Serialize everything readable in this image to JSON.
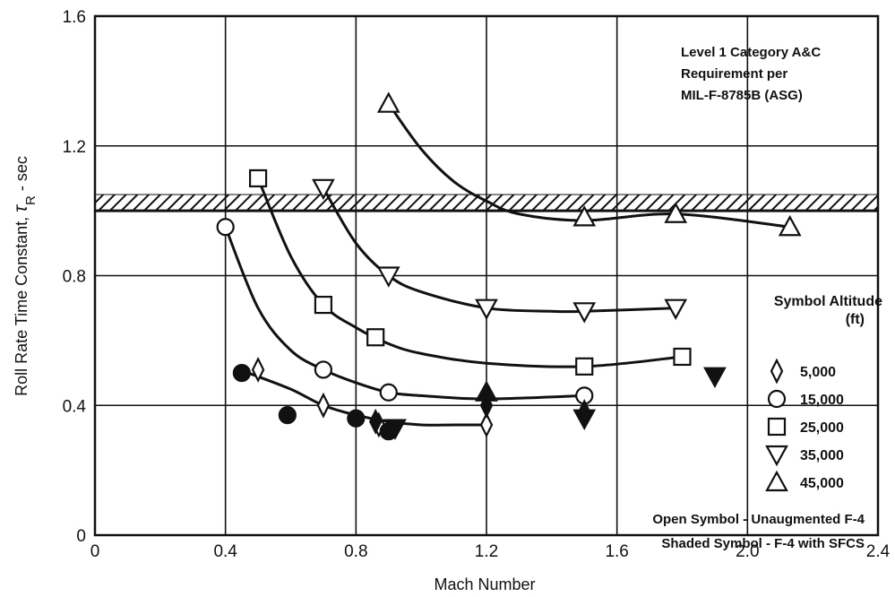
{
  "chart_data": {
    "type": "scatter",
    "xlabel": "Mach Number",
    "ylabel_main": "Roll Rate Time Constant, ",
    "ylabel_symbol": "τ",
    "ylabel_sub": "R",
    "ylabel_unit": " - sec",
    "xlim": [
      0,
      2.4
    ],
    "ylim": [
      0,
      1.6
    ],
    "x_ticks": [
      "0",
      "0.4",
      "0.8",
      "1.2",
      "1.6",
      "2.0",
      "2.4"
    ],
    "y_ticks": [
      "0",
      "0.4",
      "0.8",
      "1.2",
      "1.6"
    ],
    "grid": true,
    "requirement_band": {
      "y_low": 1.0,
      "y_high": 1.05
    },
    "annotation_lines": [
      "Level 1 Category A&C",
      "Requirement per",
      "MIL-F-8785B (ASG)"
    ],
    "legend": {
      "title_line1": "Symbol Altitude",
      "title_line2": "(ft)",
      "entries": [
        {
          "symbol": "diamond",
          "label": "5,000"
        },
        {
          "symbol": "circle",
          "label": "15,000"
        },
        {
          "symbol": "square",
          "label": "25,000"
        },
        {
          "symbol": "triangle-down",
          "label": "35,000"
        },
        {
          "symbol": "triangle-up",
          "label": "45,000"
        }
      ],
      "notes": [
        "Open Symbol - Unaugmented F-4",
        "Shaded Symbol - F-4 with SFCS"
      ]
    },
    "series": [
      {
        "altitude": "5,000",
        "symbol": "diamond",
        "style": "open",
        "x": [
          0.5,
          0.7,
          0.87,
          1.2
        ],
        "y": [
          0.51,
          0.4,
          0.34,
          0.34
        ]
      },
      {
        "altitude": "15,000",
        "symbol": "circle",
        "style": "open",
        "x": [
          0.4,
          0.7,
          0.9,
          1.5
        ],
        "y": [
          0.95,
          0.51,
          0.44,
          0.43
        ]
      },
      {
        "altitude": "25,000",
        "symbol": "square",
        "style": "open",
        "x": [
          0.5,
          0.7,
          0.86,
          1.5,
          1.8
        ],
        "y": [
          1.1,
          0.71,
          0.61,
          0.52,
          0.55
        ]
      },
      {
        "altitude": "35,000",
        "symbol": "triangle-down",
        "style": "open",
        "x": [
          0.7,
          0.9,
          1.2,
          1.5,
          1.78
        ],
        "y": [
          1.07,
          0.8,
          0.7,
          0.69,
          0.7
        ]
      },
      {
        "altitude": "45,000",
        "symbol": "triangle-up",
        "style": "open",
        "x": [
          0.9,
          1.5,
          1.78,
          2.13
        ],
        "y": [
          1.33,
          0.98,
          0.99,
          0.95
        ]
      },
      {
        "altitude": "5,000",
        "symbol": "diamond",
        "style": "shaded",
        "x": [
          0.86,
          1.2,
          1.5
        ],
        "y": [
          0.35,
          0.4,
          0.38
        ]
      },
      {
        "altitude": "15,000",
        "symbol": "circle",
        "style": "shaded",
        "x": [
          0.45,
          0.59,
          0.8,
          0.9
        ],
        "y": [
          0.5,
          0.37,
          0.36,
          0.32
        ]
      },
      {
        "altitude": "35,000",
        "symbol": "triangle-down",
        "style": "shaded",
        "x": [
          0.92,
          1.5,
          1.9
        ],
        "y": [
          0.33,
          0.36,
          0.49
        ]
      },
      {
        "altitude": "45,000",
        "symbol": "triangle-up",
        "style": "shaded",
        "x": [
          1.2
        ],
        "y": [
          0.44
        ]
      }
    ],
    "curves": [
      {
        "name": "5,000 ft fit",
        "x": [
          0.47,
          0.6,
          0.7,
          0.8,
          0.9,
          1.0,
          1.1,
          1.2
        ],
        "y": [
          0.5,
          0.45,
          0.4,
          0.37,
          0.35,
          0.34,
          0.34,
          0.34
        ]
      },
      {
        "name": "15,000 ft fit",
        "x": [
          0.4,
          0.5,
          0.6,
          0.7,
          0.8,
          0.9,
          1.0,
          1.2,
          1.5
        ],
        "y": [
          0.95,
          0.7,
          0.57,
          0.51,
          0.47,
          0.44,
          0.43,
          0.42,
          0.43
        ]
      },
      {
        "name": "25,000 ft fit",
        "x": [
          0.5,
          0.6,
          0.7,
          0.8,
          0.9,
          1.0,
          1.2,
          1.5,
          1.8
        ],
        "y": [
          1.1,
          0.86,
          0.71,
          0.64,
          0.59,
          0.56,
          0.53,
          0.52,
          0.55
        ]
      },
      {
        "name": "35,000 ft fit",
        "x": [
          0.7,
          0.8,
          0.9,
          1.0,
          1.2,
          1.4,
          1.5,
          1.78
        ],
        "y": [
          1.07,
          0.9,
          0.8,
          0.75,
          0.7,
          0.69,
          0.69,
          0.7
        ]
      },
      {
        "name": "45,000 ft fit",
        "x": [
          0.9,
          1.0,
          1.1,
          1.2,
          1.3,
          1.5,
          1.78,
          2.13
        ],
        "y": [
          1.33,
          1.19,
          1.09,
          1.03,
          0.99,
          0.97,
          0.99,
          0.95
        ]
      }
    ]
  }
}
